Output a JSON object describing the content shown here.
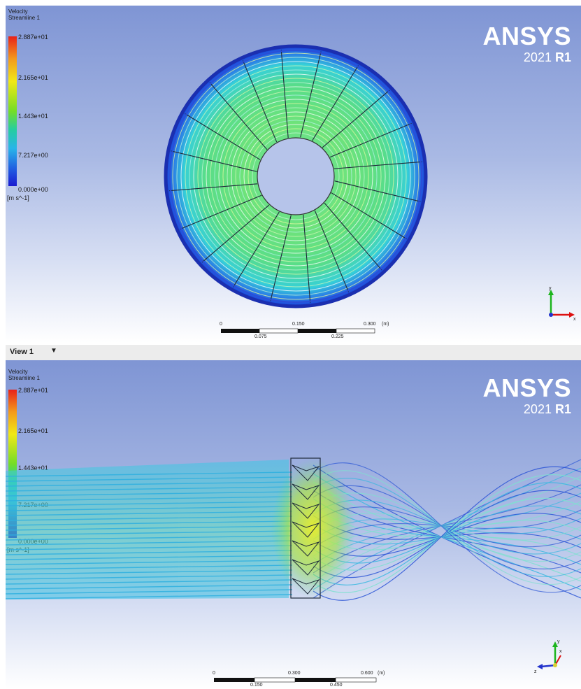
{
  "brand": {
    "name": "ANSYS",
    "year": "2021",
    "release": "R1"
  },
  "legend": {
    "variable": "Velocity",
    "object": "Streamline 1",
    "ticks": [
      "2.887e+01",
      "2.165e+01",
      "1.443e+01",
      "7.217e+00",
      "0.000e+00"
    ],
    "unit": "[m s^-1]"
  },
  "view_bar": {
    "label": "View 1",
    "dropdown": "▼"
  },
  "viewport1": {
    "scale": {
      "labels": [
        "0",
        "0.150",
        "0.300"
      ],
      "unit": "(m)",
      "sub_labels": [
        "0.075",
        "0.225"
      ]
    },
    "axes": {
      "x": "x",
      "y": "y"
    }
  },
  "viewport2": {
    "scale": {
      "labels": [
        "0",
        "0.300",
        "0.600"
      ],
      "unit": "(m)",
      "sub_labels": [
        "0.150",
        "0.450"
      ]
    },
    "axes": {
      "x": "x",
      "y": "y",
      "z": "z"
    }
  },
  "colors": {
    "background_top": "#7f95d4",
    "background_bottom": "#ffffff",
    "accent": "#1a1ad0"
  }
}
